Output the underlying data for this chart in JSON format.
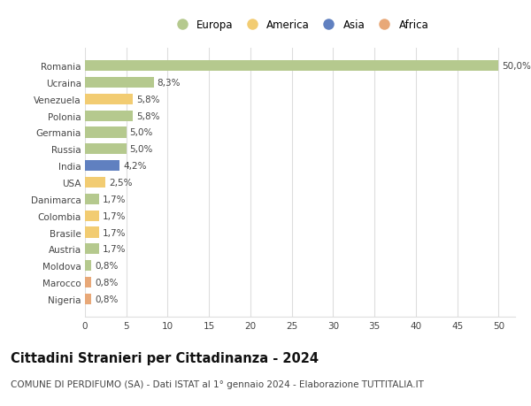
{
  "countries": [
    "Romania",
    "Ucraina",
    "Venezuela",
    "Polonia",
    "Germania",
    "Russia",
    "India",
    "USA",
    "Danimarca",
    "Colombia",
    "Brasile",
    "Austria",
    "Moldova",
    "Marocco",
    "Nigeria"
  ],
  "values": [
    50.0,
    8.3,
    5.8,
    5.8,
    5.0,
    5.0,
    4.2,
    2.5,
    1.7,
    1.7,
    1.7,
    1.7,
    0.8,
    0.8,
    0.8
  ],
  "labels": [
    "50,0%",
    "8,3%",
    "5,8%",
    "5,8%",
    "5,0%",
    "5,0%",
    "4,2%",
    "2,5%",
    "1,7%",
    "1,7%",
    "1,7%",
    "1,7%",
    "0,8%",
    "0,8%",
    "0,8%"
  ],
  "continents": [
    "Europa",
    "Europa",
    "America",
    "Europa",
    "Europa",
    "Europa",
    "Asia",
    "America",
    "Europa",
    "America",
    "America",
    "Europa",
    "Europa",
    "Africa",
    "Africa"
  ],
  "continent_colors": {
    "Europa": "#b5c98e",
    "America": "#f2cc72",
    "Asia": "#6080c0",
    "Africa": "#e8a878"
  },
  "legend_order": [
    "Europa",
    "America",
    "Asia",
    "Africa"
  ],
  "title": "Cittadini Stranieri per Cittadinanza - 2024",
  "subtitle": "COMUNE DI PERDIFUMO (SA) - Dati ISTAT al 1° gennaio 2024 - Elaborazione TUTTITALIA.IT",
  "xlim": [
    0,
    52
  ],
  "xticks": [
    0,
    5,
    10,
    15,
    20,
    25,
    30,
    35,
    40,
    45,
    50
  ],
  "background_color": "#ffffff",
  "grid_color": "#dddddd",
  "bar_height": 0.65,
  "title_fontsize": 10.5,
  "subtitle_fontsize": 7.5,
  "label_fontsize": 7.5,
  "tick_fontsize": 7.5,
  "legend_fontsize": 8.5
}
